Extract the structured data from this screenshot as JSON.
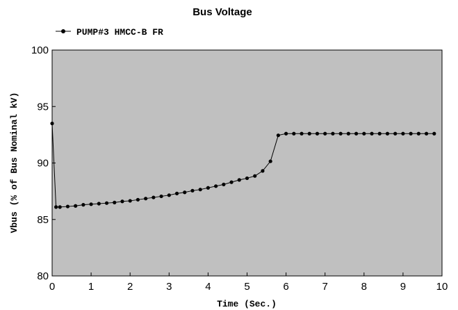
{
  "chart_data": {
    "type": "line",
    "title": "Bus Voltage",
    "xlabel": "Time (Sec.)",
    "ylabel": "Vbus (% of Bus Nominal kV)",
    "xlim": [
      0,
      10
    ],
    "ylim": [
      80,
      100
    ],
    "x_ticks": [
      "0",
      "1",
      "2",
      "3",
      "4",
      "5",
      "6",
      "7",
      "8",
      "9",
      "10"
    ],
    "y_ticks": [
      "80",
      "85",
      "90",
      "95",
      "100"
    ],
    "grid": false,
    "legend_position": "top-left",
    "colors": {
      "plot_background": "#c0c0c0",
      "line": "#000000",
      "marker": "#000000"
    },
    "series": [
      {
        "name": "PUMP#3 HMCC-B FR",
        "marker": "circle",
        "points": [
          [
            0.0,
            93.5
          ],
          [
            0.1,
            86.1
          ],
          [
            0.2,
            86.1
          ],
          [
            0.4,
            86.15
          ],
          [
            0.6,
            86.2
          ],
          [
            0.8,
            86.3
          ],
          [
            1.0,
            86.35
          ],
          [
            1.2,
            86.4
          ],
          [
            1.4,
            86.45
          ],
          [
            1.6,
            86.5
          ],
          [
            1.8,
            86.6
          ],
          [
            2.0,
            86.65
          ],
          [
            2.2,
            86.75
          ],
          [
            2.4,
            86.85
          ],
          [
            2.6,
            86.95
          ],
          [
            2.8,
            87.05
          ],
          [
            3.0,
            87.15
          ],
          [
            3.2,
            87.3
          ],
          [
            3.4,
            87.4
          ],
          [
            3.6,
            87.55
          ],
          [
            3.8,
            87.65
          ],
          [
            4.0,
            87.8
          ],
          [
            4.2,
            87.95
          ],
          [
            4.4,
            88.1
          ],
          [
            4.6,
            88.3
          ],
          [
            4.8,
            88.5
          ],
          [
            5.0,
            88.65
          ],
          [
            5.2,
            88.85
          ],
          [
            5.4,
            89.3
          ],
          [
            5.6,
            90.15
          ],
          [
            5.8,
            92.45
          ],
          [
            6.0,
            92.6
          ],
          [
            6.2,
            92.6
          ],
          [
            6.4,
            92.6
          ],
          [
            6.6,
            92.6
          ],
          [
            6.8,
            92.6
          ],
          [
            7.0,
            92.6
          ],
          [
            7.2,
            92.6
          ],
          [
            7.4,
            92.6
          ],
          [
            7.6,
            92.6
          ],
          [
            7.8,
            92.6
          ],
          [
            8.0,
            92.6
          ],
          [
            8.2,
            92.6
          ],
          [
            8.4,
            92.6
          ],
          [
            8.6,
            92.6
          ],
          [
            8.8,
            92.6
          ],
          [
            9.0,
            92.6
          ],
          [
            9.2,
            92.6
          ],
          [
            9.4,
            92.6
          ],
          [
            9.6,
            92.6
          ],
          [
            9.8,
            92.6
          ]
        ]
      }
    ]
  }
}
